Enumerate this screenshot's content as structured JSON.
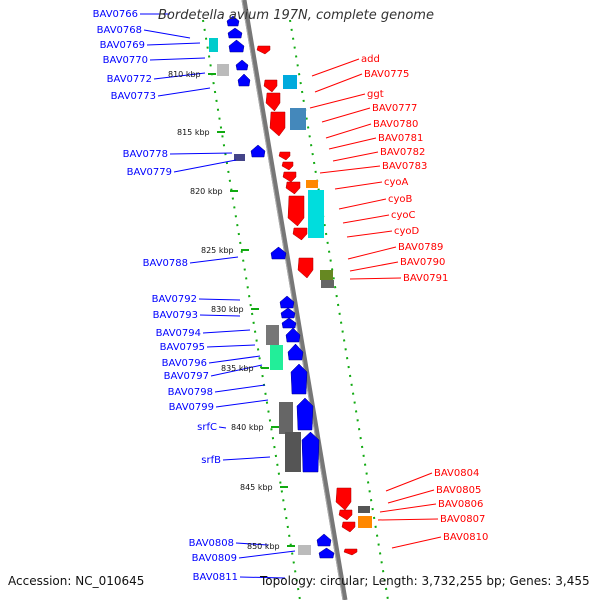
{
  "header": {
    "title": "Bordetella avium 197N, complete genome"
  },
  "footer": {
    "accession": "Accession: NC_010645",
    "summary": "Topology: circular; Length: 3,732,255 bp; Genes: 3,455"
  },
  "colors": {
    "forward": "#0000ff",
    "reverse": "#ff0000",
    "backbone": "#888888",
    "ticks": "#00aa00"
  },
  "kbp_ticks": [
    "810 kbp",
    "815 kbp",
    "820 kbp",
    "825 kbp",
    "830 kbp",
    "835 kbp",
    "840 kbp",
    "845 kbp",
    "850 kbp"
  ],
  "left_genes": [
    "BAV0766",
    "BAV0768",
    "BAV0769",
    "BAV0770",
    "BAV0772",
    "BAV0773",
    "BAV0778",
    "BAV0779",
    "BAV0788",
    "BAV0792",
    "BAV0793",
    "BAV0794",
    "BAV0795",
    "BAV0796",
    "BAV0797",
    "BAV0798",
    "BAV0799",
    "srfC",
    "srfB",
    "BAV0808",
    "BAV0809",
    "BAV0811"
  ],
  "right_genes": [
    "add",
    "BAV0775",
    "ggt",
    "BAV0777",
    "BAV0780",
    "BAV0781",
    "BAV0782",
    "BAV0783",
    "cyoA",
    "cyoB",
    "cyoC",
    "cyoD",
    "BAV0789",
    "BAV0790",
    "BAV0791",
    "BAV0804",
    "BAV0805",
    "BAV0806",
    "BAV0807",
    "BAV0810"
  ]
}
